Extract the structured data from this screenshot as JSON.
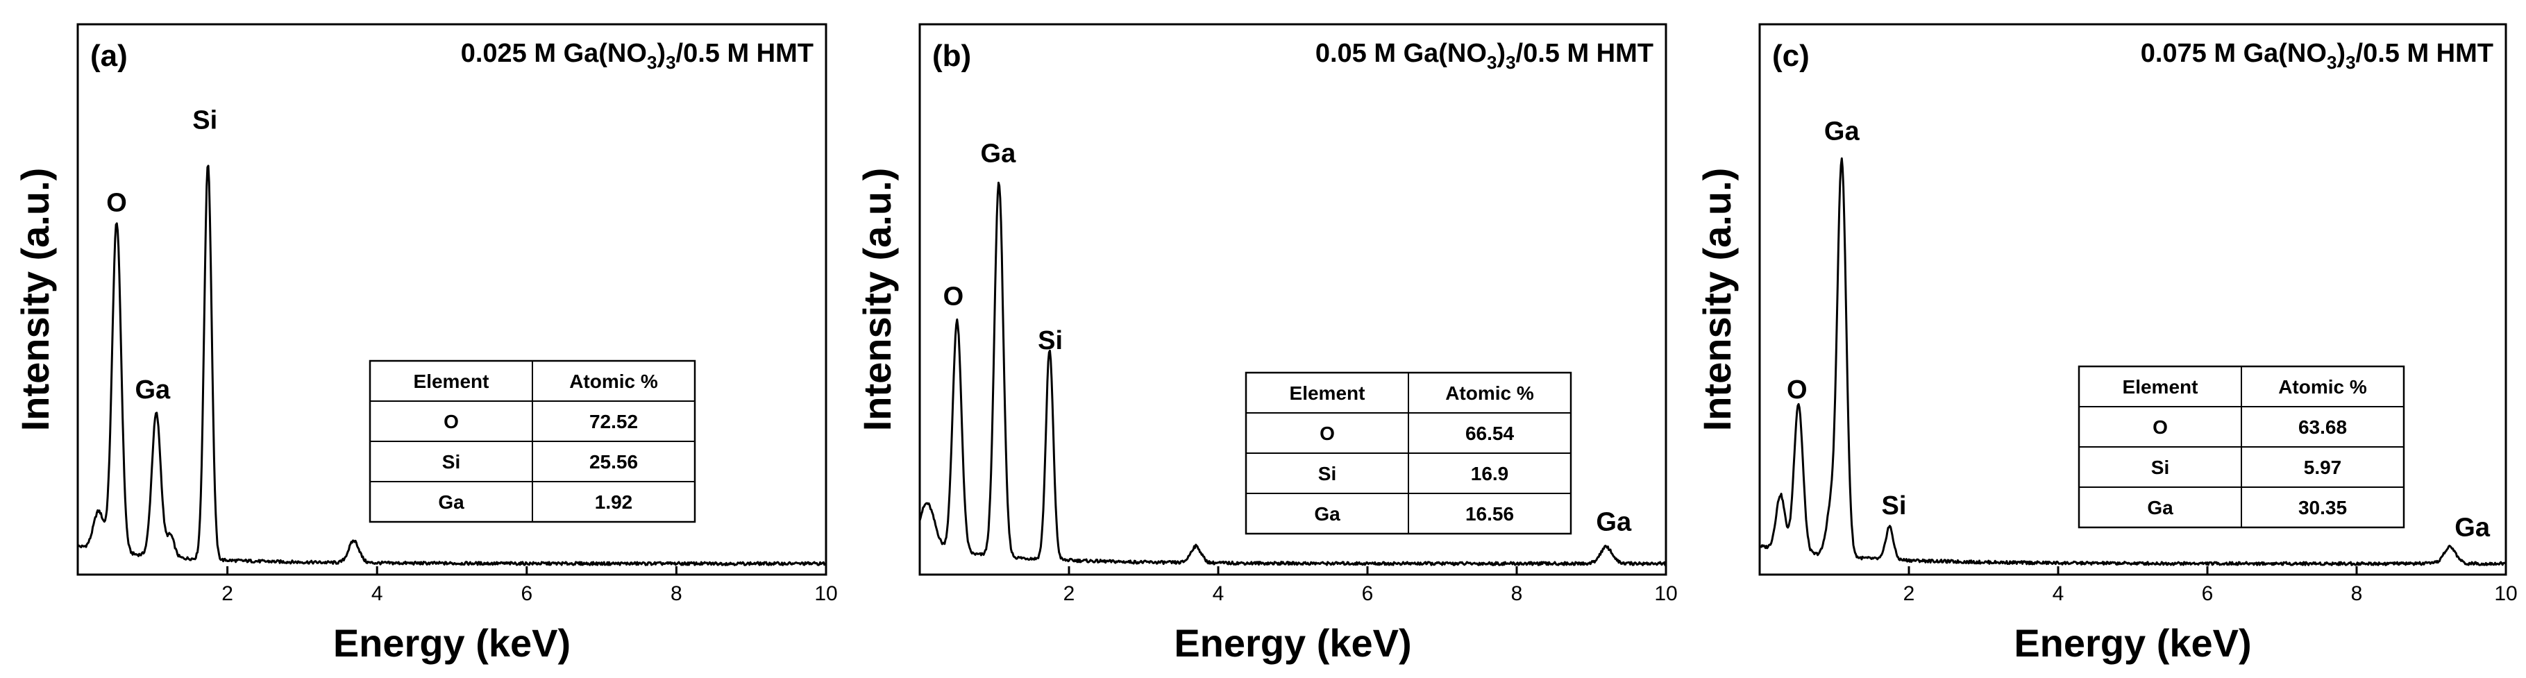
{
  "chart_data": [
    {
      "type": "line",
      "panel_label": "(a)",
      "title": {
        "pre": "0.025 M Ga(NO",
        "sub1": "3",
        "mid": ")",
        "sub2": "3",
        "post": "/0.5 M HMT"
      },
      "xlabel": "Energy (keV)",
      "ylabel": "Intensity (a.u.)",
      "xlim": [
        0,
        10
      ],
      "ylim": [
        0,
        100
      ],
      "xticks": [
        2,
        4,
        6,
        8,
        10
      ],
      "baseline": 2,
      "peaks": [
        {
          "x": 0.52,
          "h": 60,
          "w": 0.06
        },
        {
          "x": 0.28,
          "h": 7,
          "w": 0.07
        },
        {
          "x": 1.05,
          "h": 26,
          "w": 0.06
        },
        {
          "x": 1.24,
          "h": 4,
          "w": 0.05
        },
        {
          "x": 1.74,
          "h": 72,
          "w": 0.05
        },
        {
          "x": 3.69,
          "h": 4,
          "w": 0.07
        }
      ],
      "peak_labels": [
        {
          "text": "O",
          "x": 0.52,
          "y": 66
        },
        {
          "text": "Ga",
          "x": 1.0,
          "y": 32
        },
        {
          "text": "Si",
          "x": 1.7,
          "y": 81
        }
      ],
      "table": {
        "headers": [
          "Element",
          "Atomic %"
        ],
        "rows": [
          [
            "O",
            "72.52"
          ],
          [
            "Si",
            "25.56"
          ],
          [
            "Ga",
            "1.92"
          ]
        ]
      }
    },
    {
      "type": "line",
      "panel_label": "(b)",
      "title": {
        "pre": "0.05 M Ga(NO",
        "sub1": "3",
        "mid": ")",
        "sub2": "3",
        "post": "/0.5 M HMT"
      },
      "xlabel": "Energy (keV)",
      "ylabel": "Intensity (a.u.)",
      "xlim": [
        0,
        10
      ],
      "ylim": [
        0,
        100
      ],
      "xticks": [
        2,
        4,
        6,
        8,
        10
      ],
      "baseline": 2,
      "peaks": [
        {
          "x": 0.1,
          "h": 8,
          "w": 0.1
        },
        {
          "x": 0.5,
          "h": 42,
          "w": 0.06
        },
        {
          "x": 1.06,
          "h": 68,
          "w": 0.06
        },
        {
          "x": 1.74,
          "h": 38,
          "w": 0.05
        },
        {
          "x": 3.7,
          "h": 3,
          "w": 0.07
        },
        {
          "x": 9.2,
          "h": 3,
          "w": 0.08
        }
      ],
      "peak_labels": [
        {
          "text": "O",
          "x": 0.45,
          "y": 49
        },
        {
          "text": "Ga",
          "x": 1.05,
          "y": 75
        },
        {
          "text": "Si",
          "x": 1.75,
          "y": 41
        },
        {
          "text": "Ga",
          "x": 9.3,
          "y": 8
        }
      ],
      "table": {
        "headers": [
          "Element",
          "Atomic %"
        ],
        "rows": [
          [
            "O",
            "66.54"
          ],
          [
            "Si",
            "16.9"
          ],
          [
            "Ga",
            "16.56"
          ]
        ]
      }
    },
    {
      "type": "line",
      "panel_label": "(c)",
      "title": {
        "pre": "0.075 M Ga(NO",
        "sub1": "3",
        "mid": ")",
        "sub2": "3",
        "post": "/0.5 M HMT"
      },
      "xlabel": "Energy (keV)",
      "ylabel": "Intensity (a.u.)",
      "xlim": [
        0,
        10
      ],
      "ylim": [
        0,
        100
      ],
      "xticks": [
        2,
        4,
        6,
        8,
        10
      ],
      "baseline": 2,
      "peaks": [
        {
          "x": 0.28,
          "h": 10,
          "w": 0.06
        },
        {
          "x": 0.52,
          "h": 27,
          "w": 0.06
        },
        {
          "x": 0.95,
          "h": 8,
          "w": 0.06
        },
        {
          "x": 1.1,
          "h": 72,
          "w": 0.06
        },
        {
          "x": 1.74,
          "h": 6,
          "w": 0.05
        },
        {
          "x": 9.25,
          "h": 3,
          "w": 0.08
        }
      ],
      "peak_labels": [
        {
          "text": "O",
          "x": 0.5,
          "y": 32
        },
        {
          "text": "Ga",
          "x": 1.1,
          "y": 79
        },
        {
          "text": "Si",
          "x": 1.8,
          "y": 11
        },
        {
          "text": "Ga",
          "x": 9.55,
          "y": 7
        }
      ],
      "table": {
        "headers": [
          "Element",
          "Atomic %"
        ],
        "rows": [
          [
            "O",
            "63.68"
          ],
          [
            "Si",
            "5.97"
          ],
          [
            "Ga",
            "30.35"
          ]
        ]
      }
    }
  ]
}
